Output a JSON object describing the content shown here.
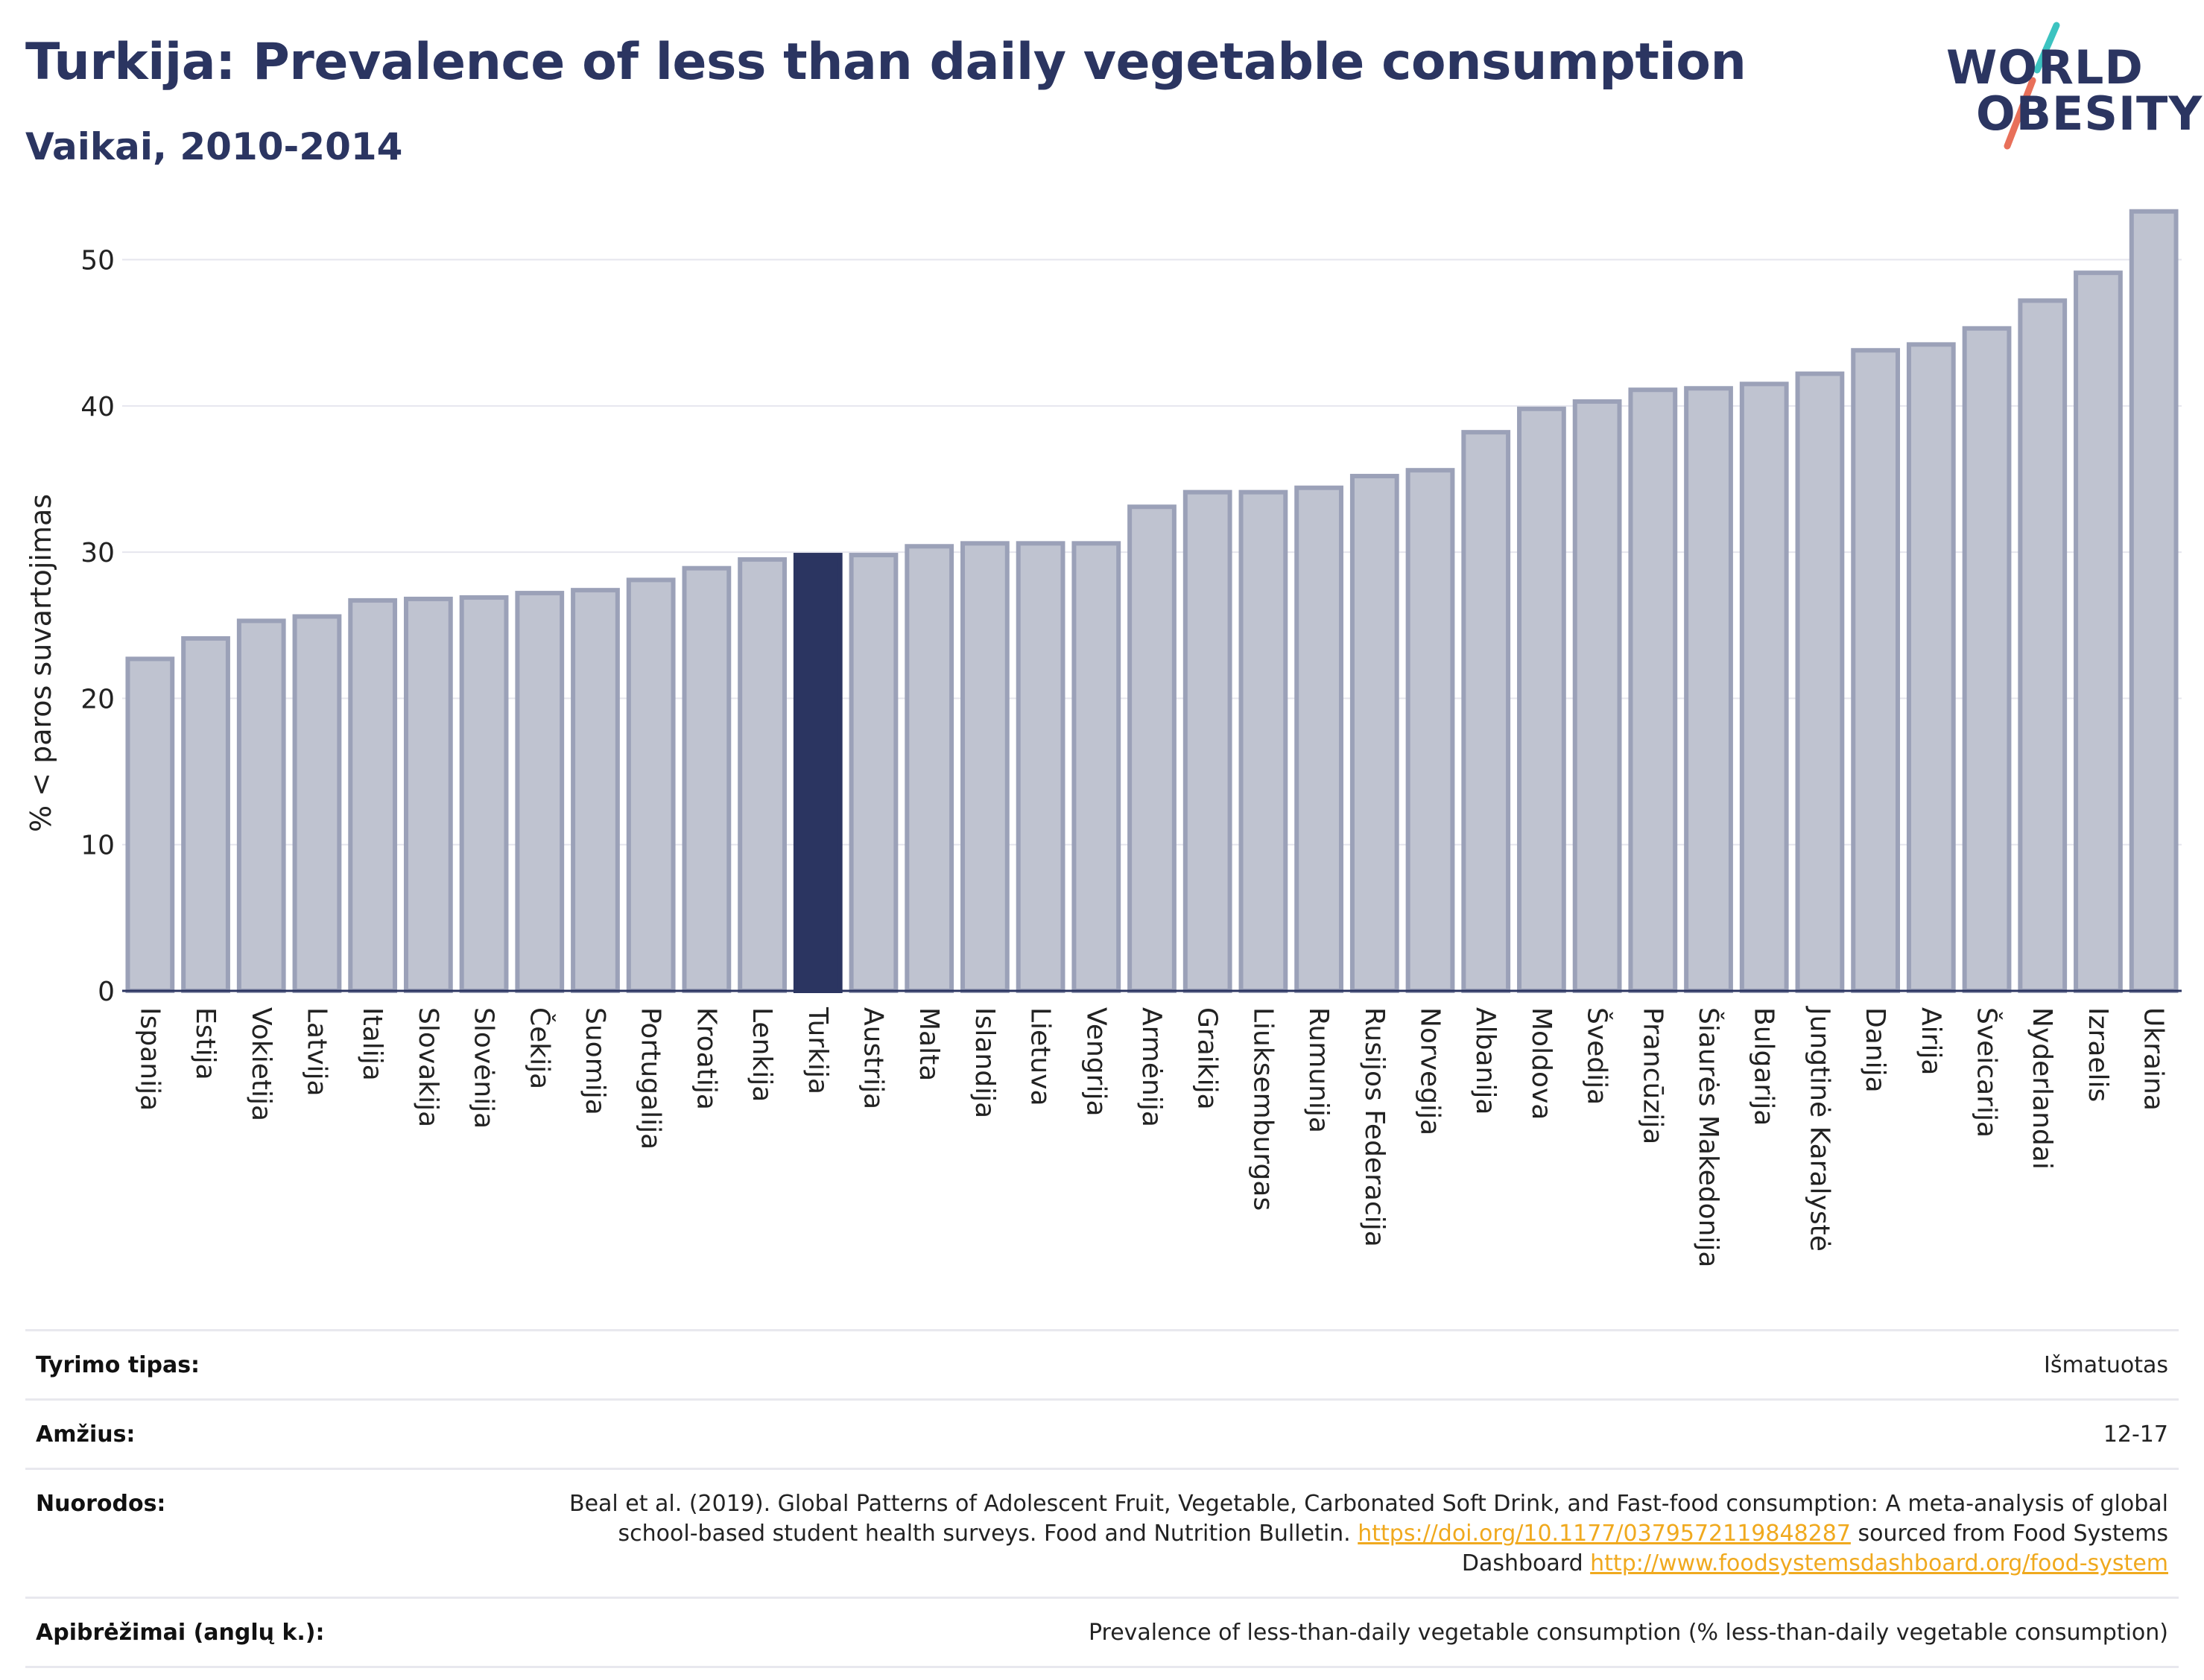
{
  "title": "Turkija: Prevalence of less than daily vegetable consumption",
  "subtitle": "Vaikai, 2010-2014",
  "logo": {
    "line1": "WORLD",
    "line2": "OBESITY",
    "slash_colors": [
      "#3cc3c0",
      "#e8705a"
    ]
  },
  "colors": {
    "highlight": "#2b3561",
    "bar": "#bfc3d0",
    "bar_border": "#9ba1b8",
    "grid": "#e6e6ee"
  },
  "chart_data": {
    "type": "bar",
    "ylabel": "% < paros suvartojimas",
    "xlabel": "",
    "ylim": [
      0,
      54
    ],
    "yticks": [
      0,
      10,
      20,
      30,
      40,
      50
    ],
    "grid": true,
    "highlight": "Turkija",
    "categories": [
      "Ispanija",
      "Estija",
      "Vokietija",
      "Latvija",
      "Italija",
      "Slovakija",
      "Slovėnija",
      "Čekija",
      "Suomija",
      "Portugalija",
      "Kroatija",
      "Lenkija",
      "Turkija",
      "Austrija",
      "Malta",
      "Islandija",
      "Lietuva",
      "Vengrija",
      "Armėnija",
      "Graikija",
      "Liuksemburgas",
      "Rumunija",
      "Rusijos Federacija",
      "Norvegija",
      "Albanija",
      "Moldova",
      "Švedija",
      "Prancūzija",
      "Šiaurės Makedonija",
      "Bulgarija",
      "Jungtinė Karalystė",
      "Danija",
      "Airija",
      "Šveicarija",
      "Nyderlandai",
      "Izraelis",
      "Ukraina"
    ],
    "values": [
      22.7,
      24.1,
      25.3,
      25.6,
      26.7,
      26.8,
      26.9,
      27.2,
      27.4,
      28.1,
      28.9,
      29.5,
      29.8,
      29.8,
      30.4,
      30.6,
      30.6,
      30.6,
      33.1,
      34.1,
      34.1,
      34.4,
      35.2,
      35.6,
      38.2,
      39.8,
      40.3,
      41.1,
      41.2,
      41.5,
      42.2,
      43.8,
      44.2,
      45.3,
      47.2,
      49.1,
      53.3
    ]
  },
  "info": [
    {
      "label": "Tyrimo tipas:",
      "value": "Išmatuotas"
    },
    {
      "label": "Amžius:",
      "value": "12-17"
    },
    {
      "label": "Nuorodos:",
      "value_pre": "Beal et al. (2019). Global Patterns of Adolescent Fruit, Vegetable, Carbonated Soft Drink, and Fast-food consumption: A meta-analysis of global school-based student health surveys. Food and Nutrition Bulletin. ",
      "link1": "https://doi.org/10.1177/0379572119848287",
      "value_mid": " sourced from Food Systems Dashboard ",
      "link2": "http://www.foodsystemsdashboard.org/food-system"
    },
    {
      "label": "Apibrėžimai (anglų k.):",
      "value": "Prevalence of less-than-daily vegetable consumption (% less-than-daily vegetable consumption)"
    }
  ]
}
